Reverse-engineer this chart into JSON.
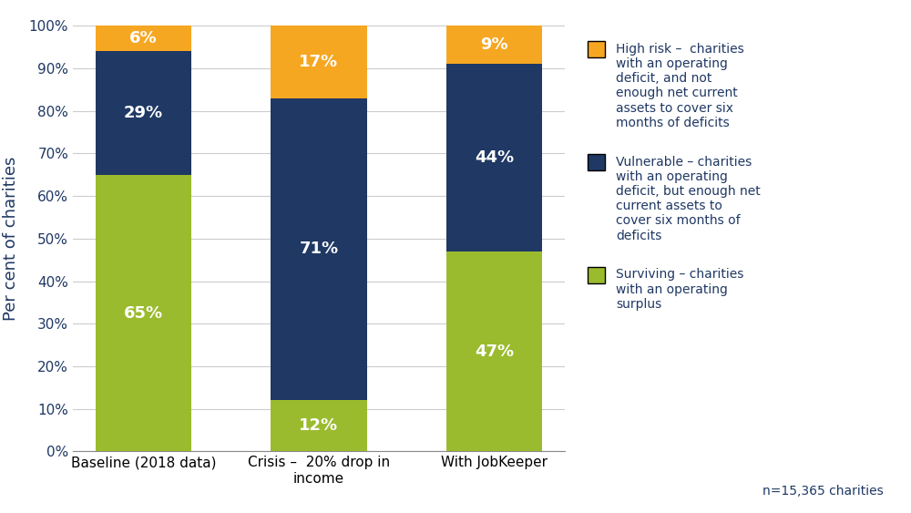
{
  "categories": [
    "Baseline (2018 data)",
    "Crisis –  20% drop in\nincome",
    "With JobKeeper"
  ],
  "surviving": [
    65,
    12,
    47
  ],
  "vulnerable": [
    29,
    71,
    44
  ],
  "high_risk": [
    6,
    17,
    9
  ],
  "colors": {
    "surviving": "#9BBB2E",
    "vulnerable": "#1F3864",
    "high_risk": "#F6A722"
  },
  "ylabel": "Per cent of charities",
  "ylim": [
    0,
    100
  ],
  "yticks": [
    0,
    10,
    20,
    30,
    40,
    50,
    60,
    70,
    80,
    90,
    100
  ],
  "ytick_labels": [
    "0%",
    "10%",
    "20%",
    "30%",
    "40%",
    "50%",
    "60%",
    "70%",
    "80%",
    "90%",
    "100%"
  ],
  "legend_labels": [
    "High risk –  charities\nwith an operating\ndeficit, and not\nenough net current\nassets to cover six\nmonths of deficits",
    "Vulnerable – charities\nwith an operating\ndeficit, but enough net\ncurrent assets to\ncover six months of\ndeficits",
    "Surviving – charities\nwith an operating\nsurplus"
  ],
  "text_color": "#1F3864",
  "note": "n=15,365 charities",
  "bar_width": 0.55,
  "label_fontsize": 13,
  "tick_fontsize": 11,
  "legend_fontsize": 10,
  "note_fontsize": 10
}
